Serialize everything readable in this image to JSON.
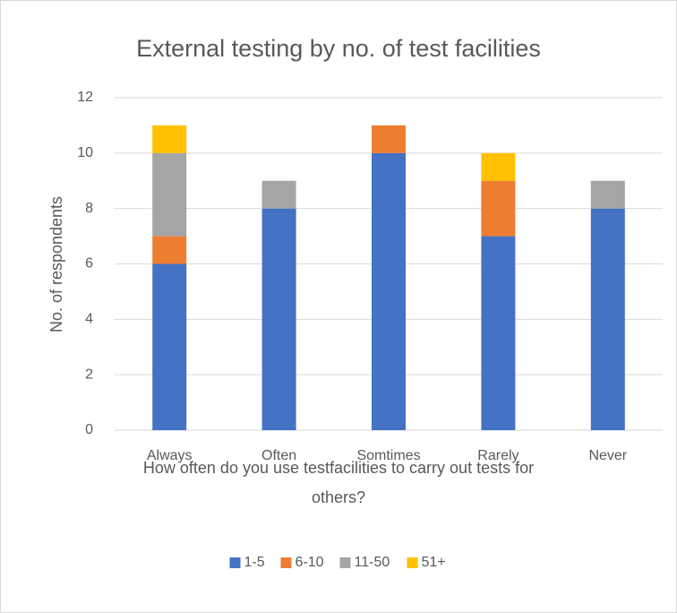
{
  "chart_data": {
    "type": "stacked_bar",
    "title": "External testing by no. of test facilities",
    "x_label": "How often do you use testfacilities to carry out tests for others?",
    "y_label": "No. of respondents",
    "categories": [
      "Always",
      "Often",
      "Somtimes",
      "Rarely",
      "Never"
    ],
    "series": [
      {
        "name": "1-5",
        "color": "#4472c4",
        "values": [
          6,
          8,
          10,
          7,
          8
        ]
      },
      {
        "name": "6-10",
        "color": "#ed7d31",
        "values": [
          1,
          0,
          1,
          2,
          0
        ]
      },
      {
        "name": "11-50",
        "color": "#a5a5a5",
        "values": [
          3,
          1,
          0,
          0,
          1
        ]
      },
      {
        "name": "51+",
        "color": "#ffc000",
        "values": [
          1,
          0,
          0,
          1,
          0
        ]
      }
    ],
    "ylim": [
      0,
      12
    ],
    "yticks": [
      0,
      2,
      4,
      6,
      8,
      10,
      12
    ],
    "grid": true,
    "legend": "bottom"
  }
}
